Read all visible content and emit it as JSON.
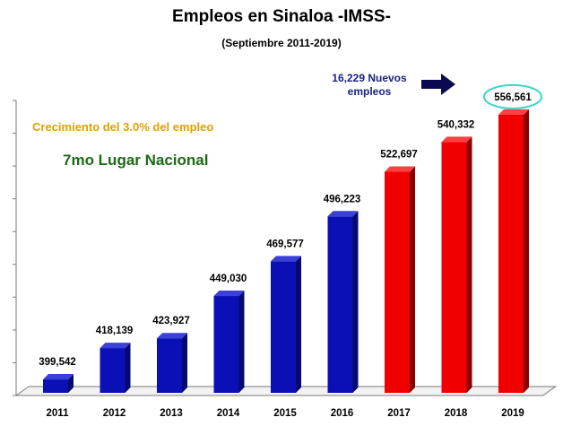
{
  "chart_data": {
    "type": "bar",
    "title": "Empleos en Sinaloa -IMSS-",
    "subtitle": "(Septiembre 2011-2019)",
    "categories": [
      "2011",
      "2012",
      "2013",
      "2014",
      "2015",
      "2016",
      "2017",
      "2018",
      "2019"
    ],
    "values": [
      399542,
      418139,
      423927,
      449030,
      469577,
      496223,
      522697,
      540332,
      556561
    ],
    "value_labels": [
      "399,542",
      "418,139",
      "423,927",
      "449,030",
      "469,577",
      "496,223",
      "522,697",
      "540,332",
      "556,561"
    ],
    "ylim": [
      390000,
      565000
    ],
    "grid": false,
    "legend": "none",
    "annotations": {
      "growth": "Crecimiento del 3.0% del empleo",
      "rank": "7mo Lugar Nacional",
      "new_jobs_line1": "16,229 Nuevos",
      "new_jobs_line2": "empleos"
    },
    "highlight_last_value": true
  },
  "colors": {
    "blue_front": "#0a10b5",
    "blue_side": "#060a6e",
    "blue_top": "#3a40d8",
    "red_front": "#f00000",
    "red_side": "#8a0000",
    "red_top": "#ff4040",
    "growth_text": "#e0a000",
    "rank_text": "#1b6b14",
    "arrow": "#0a0a50",
    "highlight_ring": "#3ad6c8",
    "axis": "#7a7a7a"
  },
  "highlight_from_index": 6
}
